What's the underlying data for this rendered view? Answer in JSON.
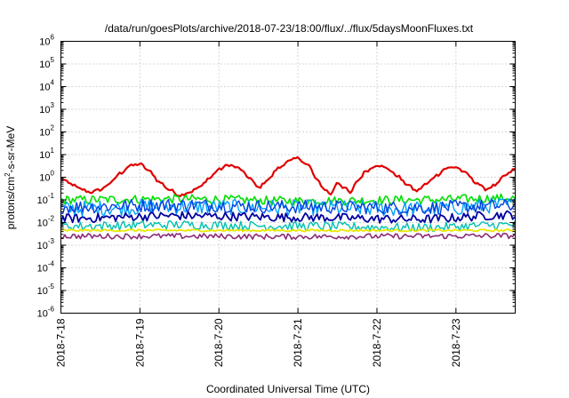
{
  "chart_data": {
    "type": "line",
    "title": "/data/run/goesPlots/archive/2018-07-23/18:00/flux/../flux/5daysMoonFluxes.txt",
    "xlabel": "Coordinated Universal Time (UTC)",
    "ylabel": "protons/cm²-s-sr-MeV",
    "ylabel_parts": {
      "before": "protons/cm",
      "sup": "2",
      "after": "-s-sr-MeV"
    },
    "y_scale": "log",
    "ylim": [
      "1e-6",
      "1e6"
    ],
    "y_ticks": [
      {
        "exp": -6,
        "base": "10",
        "sup": "-6"
      },
      {
        "exp": -5,
        "base": "10",
        "sup": "-5"
      },
      {
        "exp": -4,
        "base": "10",
        "sup": "-4"
      },
      {
        "exp": -3,
        "base": "10",
        "sup": "-3"
      },
      {
        "exp": -2,
        "base": "10",
        "sup": "-2"
      },
      {
        "exp": -1,
        "base": "10",
        "sup": "-1"
      },
      {
        "exp": 0,
        "base": "10",
        "sup": "0"
      },
      {
        "exp": 1,
        "base": "10",
        "sup": "1"
      },
      {
        "exp": 2,
        "base": "10",
        "sup": "2"
      },
      {
        "exp": 3,
        "base": "10",
        "sup": "3"
      },
      {
        "exp": 4,
        "base": "10",
        "sup": "4"
      },
      {
        "exp": 5,
        "base": "10",
        "sup": "5"
      },
      {
        "exp": 6,
        "base": "10",
        "sup": "6"
      }
    ],
    "x_start": "2018-07-18T00:00",
    "x_end": "2018-07-23T18:00",
    "x_ticks": [
      {
        "date": "2018-07-18T00:00",
        "label": "2018-7-18"
      },
      {
        "date": "2018-07-19T00:00",
        "label": "2018-7-19"
      },
      {
        "date": "2018-07-20T00:00",
        "label": "2018-7-20"
      },
      {
        "date": "2018-07-21T00:00",
        "label": "2018-7-21"
      },
      {
        "date": "2018-07-22T00:00",
        "label": "2018-7-22"
      },
      {
        "date": "2018-07-23T00:00",
        "label": "2018-7-23"
      }
    ],
    "grid": true,
    "series": [
      {
        "color": "#e00000",
        "stroke_width": 2.2,
        "jitter": 0.06,
        "points": [
          [
            "2018-07-18T00:00",
            0.9
          ],
          [
            "2018-07-18T03:00",
            0.5
          ],
          [
            "2018-07-18T06:00",
            0.3
          ],
          [
            "2018-07-18T09:00",
            0.22
          ],
          [
            "2018-07-18T12:00",
            0.28
          ],
          [
            "2018-07-18T15:00",
            0.55
          ],
          [
            "2018-07-18T18:00",
            1.5
          ],
          [
            "2018-07-18T21:00",
            3.2
          ],
          [
            "2018-07-19T00:00",
            3.8
          ],
          [
            "2018-07-19T03:00",
            1.8
          ],
          [
            "2018-07-19T06:00",
            0.6
          ],
          [
            "2018-07-19T09:00",
            0.28
          ],
          [
            "2018-07-19T12:00",
            0.16
          ],
          [
            "2018-07-19T15:00",
            0.22
          ],
          [
            "2018-07-19T18:00",
            0.35
          ],
          [
            "2018-07-19T21:00",
            0.9
          ],
          [
            "2018-07-20T00:00",
            2.2
          ],
          [
            "2018-07-20T03:00",
            3.5
          ],
          [
            "2018-07-20T06:00",
            2.5
          ],
          [
            "2018-07-20T09:00",
            1.0
          ],
          [
            "2018-07-20T12:00",
            0.35
          ],
          [
            "2018-07-20T15:00",
            0.8
          ],
          [
            "2018-07-20T18:00",
            2.5
          ],
          [
            "2018-07-20T21:00",
            5.0
          ],
          [
            "2018-07-21T00:00",
            7.0
          ],
          [
            "2018-07-21T03:00",
            3.5
          ],
          [
            "2018-07-21T06:00",
            0.7
          ],
          [
            "2018-07-21T08:00",
            0.3
          ],
          [
            "2018-07-21T10:00",
            0.18
          ],
          [
            "2018-07-21T12:00",
            0.6
          ],
          [
            "2018-07-21T14:00",
            0.35
          ],
          [
            "2018-07-21T16:00",
            0.2
          ],
          [
            "2018-07-21T18:00",
            0.7
          ],
          [
            "2018-07-21T21:00",
            2.0
          ],
          [
            "2018-07-22T00:00",
            3.5
          ],
          [
            "2018-07-22T03:00",
            2.5
          ],
          [
            "2018-07-22T06:00",
            1.2
          ],
          [
            "2018-07-22T09:00",
            0.5
          ],
          [
            "2018-07-22T12:00",
            0.25
          ],
          [
            "2018-07-22T15:00",
            0.5
          ],
          [
            "2018-07-22T18:00",
            1.2
          ],
          [
            "2018-07-22T21:00",
            2.5
          ],
          [
            "2018-07-23T00:00",
            2.8
          ],
          [
            "2018-07-23T03:00",
            1.5
          ],
          [
            "2018-07-23T06:00",
            0.6
          ],
          [
            "2018-07-23T09:00",
            0.3
          ],
          [
            "2018-07-23T12:00",
            0.45
          ],
          [
            "2018-07-23T15:00",
            1.2
          ],
          [
            "2018-07-23T18:00",
            2.3
          ]
        ]
      },
      {
        "color": "#00e000",
        "stroke_width": 1.6,
        "jitter": 0.2,
        "points": [
          [
            "2018-07-18T00:00",
            0.1
          ],
          [
            "2018-07-19T12:00",
            0.11
          ],
          [
            "2018-07-21T00:00",
            0.09
          ],
          [
            "2018-07-22T12:00",
            0.1
          ],
          [
            "2018-07-23T18:00",
            0.12
          ]
        ]
      },
      {
        "color": "#00a0ff",
        "stroke_width": 1.4,
        "jitter": 0.35,
        "points": [
          [
            "2018-07-18T00:00",
            0.04
          ],
          [
            "2018-07-19T12:00",
            0.05
          ],
          [
            "2018-07-21T00:00",
            0.045
          ],
          [
            "2018-07-22T12:00",
            0.04
          ],
          [
            "2018-07-23T18:00",
            0.06
          ]
        ]
      },
      {
        "color": "#0040e0",
        "stroke_width": 1.4,
        "jitter": 0.3,
        "points": [
          [
            "2018-07-18T00:00",
            0.05
          ],
          [
            "2018-07-19T12:00",
            0.06
          ],
          [
            "2018-07-21T00:00",
            0.05
          ],
          [
            "2018-07-22T12:00",
            0.045
          ],
          [
            "2018-07-23T18:00",
            0.055
          ]
        ]
      },
      {
        "color": "#0000a0",
        "stroke_width": 1.8,
        "jitter": 0.2,
        "points": [
          [
            "2018-07-18T00:00",
            0.015
          ],
          [
            "2018-07-19T12:00",
            0.02
          ],
          [
            "2018-07-21T00:00",
            0.017
          ],
          [
            "2018-07-22T12:00",
            0.014
          ],
          [
            "2018-07-23T18:00",
            0.022
          ]
        ]
      },
      {
        "color": "#00c0b0",
        "stroke_width": 1.4,
        "jitter": 0.2,
        "points": [
          [
            "2018-07-18T00:00",
            0.007
          ],
          [
            "2018-07-19T12:00",
            0.008
          ],
          [
            "2018-07-21T00:00",
            0.007
          ],
          [
            "2018-07-22T12:00",
            0.006
          ],
          [
            "2018-07-23T18:00",
            0.008
          ]
        ]
      },
      {
        "color": "#e8e800",
        "stroke_width": 1.8,
        "jitter": 0.05,
        "points": [
          [
            "2018-07-18T00:00",
            0.0045
          ],
          [
            "2018-07-21T00:00",
            0.0045
          ],
          [
            "2018-07-23T18:00",
            0.0045
          ]
        ]
      },
      {
        "color": "#8b2a7a",
        "stroke_width": 1.6,
        "jitter": 0.12,
        "points": [
          [
            "2018-07-18T00:00",
            0.0025
          ],
          [
            "2018-07-19T12:00",
            0.0025
          ],
          [
            "2018-07-21T00:00",
            0.0024
          ],
          [
            "2018-07-22T12:00",
            0.0025
          ],
          [
            "2018-07-23T18:00",
            0.0026
          ]
        ]
      }
    ]
  }
}
